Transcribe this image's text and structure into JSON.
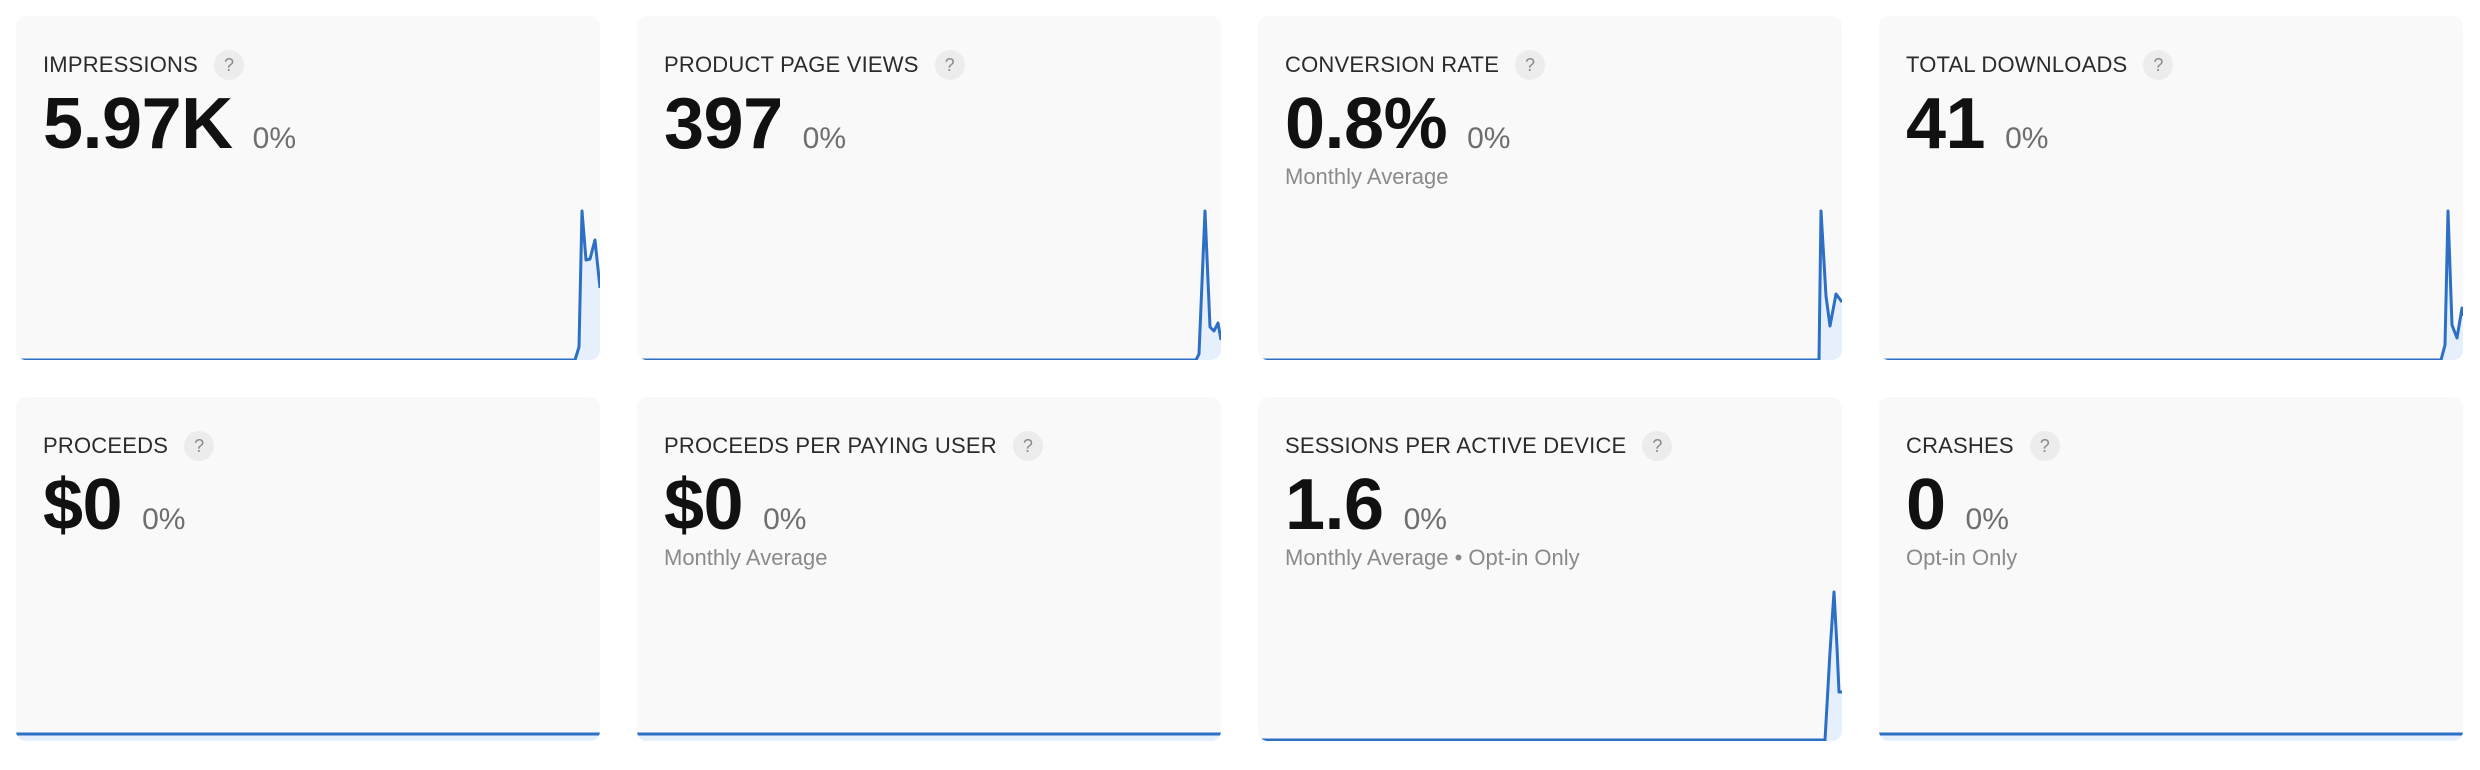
{
  "colors": {
    "accent": "#2c6fc4",
    "fill": "#e3effd",
    "card_bg": "#f9f9f9",
    "title": "#2b2b2b",
    "value": "#111111",
    "change": "#6e6e6e",
    "subtitle": "#8a8a8a"
  },
  "help_icon_glyph": "?",
  "cards": [
    {
      "title": "IMPRESSIONS",
      "value": "5.97K",
      "change": "0%",
      "subtitle": "",
      "sparkline": "0,344 559,344 563,331 566,195 570,244 574,243 579,224 584,272"
    },
    {
      "title": "PRODUCT PAGE VIEWS",
      "value": "397",
      "change": "0%",
      "subtitle": "",
      "sparkline": "0,344 559,344 562,338 568,195 573,311 577,315 581,307 584,324"
    },
    {
      "title": "CONVERSION RATE",
      "value": "0.8%",
      "change": "0%",
      "subtitle": "Monthly Average",
      "sparkline": "0,344 561,344 563,195 568,280 572,310 578,278 584,286"
    },
    {
      "title": "TOTAL DOWNLOADS",
      "value": "41",
      "change": "0%",
      "subtitle": "",
      "sparkline": "0,344 562,344 566,329 569,195 573,309 578,322 583,292 584,300"
    },
    {
      "title": "PROCEEDS",
      "value": "$0",
      "change": "0%",
      "subtitle": "",
      "sparkline": "0,337 584,337"
    },
    {
      "title": "PROCEEDS PER PAYING USER",
      "value": "$0",
      "change": "0%",
      "subtitle": "Monthly Average",
      "sparkline": "0,337 584,337"
    },
    {
      "title": "SESSIONS PER ACTIVE DEVICE",
      "value": "1.6",
      "change": "0%",
      "subtitle": "Monthly Average • Opt-in Only",
      "sparkline": "0,343 567,343 572,255 576,195 579,250 581,295 584,295"
    },
    {
      "title": "CRASHES",
      "value": "0",
      "change": "0%",
      "subtitle": "Opt-in Only",
      "sparkline": "0,337 584,337"
    }
  ]
}
